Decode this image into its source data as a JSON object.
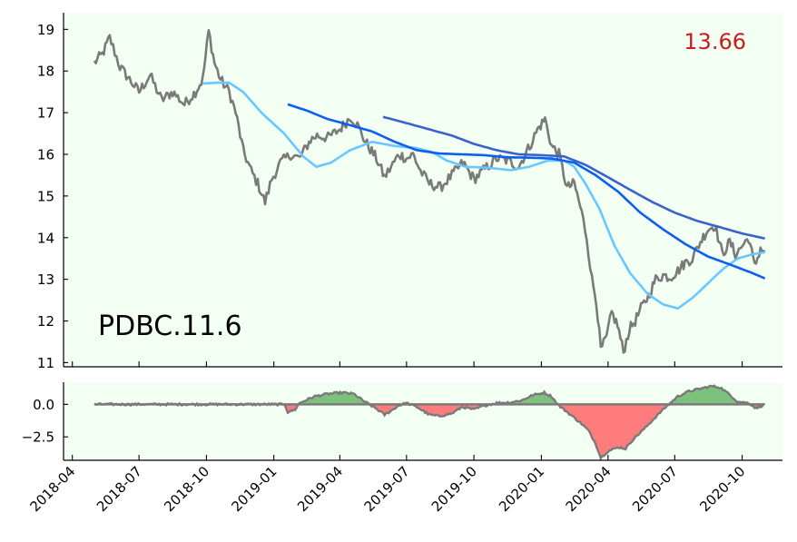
{
  "colors": {
    "background": "#f4fff4",
    "price": "#7a7a7a",
    "sma_short": "#66c8ff",
    "sma_mid": "#0a5ff0",
    "sma_long": "#3a62c8",
    "positive_fill": "#7cc27c",
    "negative_fill": "#ff7c7c",
    "price_label": "#c81e1e"
  },
  "annotations": {
    "last_price": "13.66",
    "ticker_label": "PDBC.11.6"
  },
  "chart_data": [
    {
      "type": "line",
      "x_ticks": [
        "2018-04",
        "2018-07",
        "2018-10",
        "2019-01",
        "2019-04",
        "2019-07",
        "2019-10",
        "2020-01",
        "2020-04",
        "2020-07",
        "2020-10"
      ],
      "y_ticks": [
        11,
        12,
        13,
        14,
        15,
        16,
        17,
        18,
        19
      ],
      "ylim": [
        10.9,
        19.4
      ],
      "xlim": [
        "2018-03-20",
        "2020-11-25"
      ],
      "grid": false,
      "price_keypoints": [
        [
          "2018-05-01",
          18.2
        ],
        [
          "2018-05-12",
          18.4
        ],
        [
          "2018-05-22",
          18.8
        ],
        [
          "2018-06-05",
          18.1
        ],
        [
          "2018-06-18",
          17.8
        ],
        [
          "2018-07-01",
          17.5
        ],
        [
          "2018-07-16",
          17.9
        ],
        [
          "2018-08-01",
          17.3
        ],
        [
          "2018-08-16",
          17.5
        ],
        [
          "2018-09-01",
          17.2
        ],
        [
          "2018-09-16",
          17.5
        ],
        [
          "2018-09-26",
          17.8
        ],
        [
          "2018-10-04",
          18.95
        ],
        [
          "2018-10-12",
          18.2
        ],
        [
          "2018-10-20",
          17.8
        ],
        [
          "2018-11-01",
          17.5
        ],
        [
          "2018-11-10",
          17.0
        ],
        [
          "2018-11-20",
          16.1
        ],
        [
          "2018-12-01",
          15.6
        ],
        [
          "2018-12-10",
          15.3
        ],
        [
          "2018-12-20",
          14.85
        ],
        [
          "2018-12-29",
          15.4
        ],
        [
          "2019-01-10",
          15.8
        ],
        [
          "2019-01-24",
          16.0
        ],
        [
          "2019-02-05",
          15.9
        ],
        [
          "2019-02-20",
          16.35
        ],
        [
          "2019-03-01",
          16.45
        ],
        [
          "2019-03-16",
          16.4
        ],
        [
          "2019-04-01",
          16.6
        ],
        [
          "2019-04-16",
          16.9
        ],
        [
          "2019-04-25",
          16.7
        ],
        [
          "2019-05-06",
          16.3
        ],
        [
          "2019-05-21",
          15.9
        ],
        [
          "2019-06-01",
          15.45
        ],
        [
          "2019-06-10",
          15.7
        ],
        [
          "2019-06-21",
          16.0
        ],
        [
          "2019-07-01",
          15.9
        ],
        [
          "2019-07-10",
          16.0
        ],
        [
          "2019-07-20",
          15.6
        ],
        [
          "2019-08-01",
          15.3
        ],
        [
          "2019-08-16",
          15.2
        ],
        [
          "2019-09-01",
          15.5
        ],
        [
          "2019-09-16",
          15.8
        ],
        [
          "2019-10-01",
          15.4
        ],
        [
          "2019-10-16",
          15.65
        ],
        [
          "2019-11-01",
          15.9
        ],
        [
          "2019-11-16",
          15.85
        ],
        [
          "2019-12-01",
          15.7
        ],
        [
          "2019-12-16",
          16.2
        ],
        [
          "2019-12-27",
          16.6
        ],
        [
          "2020-01-06",
          16.85
        ],
        [
          "2020-01-15",
          16.2
        ],
        [
          "2020-01-25",
          16.0
        ],
        [
          "2020-02-05",
          15.2
        ],
        [
          "2020-02-15",
          15.3
        ],
        [
          "2020-02-25",
          14.6
        ],
        [
          "2020-03-03",
          14.0
        ],
        [
          "2020-03-10",
          13.0
        ],
        [
          "2020-03-16",
          12.5
        ],
        [
          "2020-03-22",
          11.3
        ],
        [
          "2020-03-30",
          11.6
        ],
        [
          "2020-04-06",
          12.2
        ],
        [
          "2020-04-14",
          11.9
        ],
        [
          "2020-04-22",
          11.25
        ],
        [
          "2020-04-30",
          11.8
        ],
        [
          "2020-05-08",
          12.0
        ],
        [
          "2020-05-16",
          12.3
        ],
        [
          "2020-05-26",
          12.6
        ],
        [
          "2020-06-05",
          13.0
        ],
        [
          "2020-06-15",
          13.1
        ],
        [
          "2020-06-25",
          13.05
        ],
        [
          "2020-07-05",
          13.2
        ],
        [
          "2020-07-15",
          13.4
        ],
        [
          "2020-07-25",
          13.5
        ],
        [
          "2020-08-05",
          13.9
        ],
        [
          "2020-08-15",
          14.2
        ],
        [
          "2020-08-25",
          14.3
        ],
        [
          "2020-09-04",
          13.6
        ],
        [
          "2020-09-14",
          13.9
        ],
        [
          "2020-09-22",
          13.6
        ],
        [
          "2020-10-01",
          13.8
        ],
        [
          "2020-10-10",
          14.0
        ],
        [
          "2020-10-18",
          13.3
        ],
        [
          "2020-10-26",
          13.75
        ],
        [
          "2020-11-01",
          13.66
        ]
      ],
      "sma_short_keypoints": [
        [
          "2018-09-26",
          17.7
        ],
        [
          "2018-10-16",
          17.72
        ],
        [
          "2018-11-01",
          17.72
        ],
        [
          "2018-11-20",
          17.5
        ],
        [
          "2018-12-15",
          17.0
        ],
        [
          "2019-01-15",
          16.5
        ],
        [
          "2019-02-10",
          15.95
        ],
        [
          "2019-02-28",
          15.7
        ],
        [
          "2019-03-20",
          15.8
        ],
        [
          "2019-04-15",
          16.1
        ],
        [
          "2019-05-15",
          16.3
        ],
        [
          "2019-06-15",
          16.2
        ],
        [
          "2019-07-15",
          16.15
        ],
        [
          "2019-08-05",
          16.05
        ],
        [
          "2019-08-25",
          15.85
        ],
        [
          "2019-09-20",
          15.7
        ],
        [
          "2019-10-20",
          15.68
        ],
        [
          "2019-11-20",
          15.62
        ],
        [
          "2019-12-15",
          15.7
        ],
        [
          "2020-01-10",
          15.85
        ],
        [
          "2020-02-01",
          15.85
        ],
        [
          "2020-02-15",
          15.7
        ],
        [
          "2020-03-01",
          15.3
        ],
        [
          "2020-03-20",
          14.7
        ],
        [
          "2020-04-10",
          13.8
        ],
        [
          "2020-05-01",
          13.15
        ],
        [
          "2020-05-25",
          12.65
        ],
        [
          "2020-06-15",
          12.4
        ],
        [
          "2020-07-05",
          12.3
        ],
        [
          "2020-07-25",
          12.55
        ],
        [
          "2020-08-15",
          12.9
        ],
        [
          "2020-09-05",
          13.25
        ],
        [
          "2020-09-25",
          13.5
        ],
        [
          "2020-10-15",
          13.6
        ],
        [
          "2020-11-01",
          13.65
        ]
      ],
      "sma_mid_keypoints": [
        [
          "2019-01-20",
          17.2
        ],
        [
          "2019-02-15",
          17.05
        ],
        [
          "2019-03-15",
          16.85
        ],
        [
          "2019-04-15",
          16.7
        ],
        [
          "2019-05-15",
          16.55
        ],
        [
          "2019-06-15",
          16.3
        ],
        [
          "2019-07-15",
          16.1
        ],
        [
          "2019-08-15",
          16.02
        ],
        [
          "2019-09-15",
          16.0
        ],
        [
          "2019-10-15",
          15.98
        ],
        [
          "2019-11-15",
          15.93
        ],
        [
          "2019-12-15",
          15.92
        ],
        [
          "2020-01-15",
          15.9
        ],
        [
          "2020-02-15",
          15.8
        ],
        [
          "2020-03-15",
          15.5
        ],
        [
          "2020-04-15",
          15.1
        ],
        [
          "2020-05-15",
          14.6
        ],
        [
          "2020-06-15",
          14.2
        ],
        [
          "2020-07-15",
          13.85
        ],
        [
          "2020-08-15",
          13.55
        ],
        [
          "2020-09-15",
          13.35
        ],
        [
          "2020-10-15",
          13.15
        ],
        [
          "2020-11-01",
          13.02
        ]
      ],
      "sma_long_keypoints": [
        [
          "2019-05-30",
          16.9
        ],
        [
          "2019-07-01",
          16.75
        ],
        [
          "2019-08-01",
          16.6
        ],
        [
          "2019-09-01",
          16.45
        ],
        [
          "2019-10-01",
          16.25
        ],
        [
          "2019-11-01",
          16.1
        ],
        [
          "2019-12-01",
          16.0
        ],
        [
          "2020-01-01",
          15.98
        ],
        [
          "2020-02-01",
          15.95
        ],
        [
          "2020-03-01",
          15.75
        ],
        [
          "2020-04-01",
          15.45
        ],
        [
          "2020-05-01",
          15.15
        ],
        [
          "2020-06-01",
          14.85
        ],
        [
          "2020-07-01",
          14.6
        ],
        [
          "2020-08-01",
          14.4
        ],
        [
          "2020-09-01",
          14.25
        ],
        [
          "2020-10-01",
          14.1
        ],
        [
          "2020-11-01",
          13.98
        ]
      ]
    },
    {
      "type": "area",
      "y_ticks": [
        0.0,
        -2.5
      ],
      "y_tick_labels": [
        "0.0",
        "−2.5"
      ],
      "ylim": [
        -4.3,
        1.7
      ],
      "grid": false,
      "oscillator_keypoints": [
        [
          "2018-05-01",
          0
        ],
        [
          "2019-01-16",
          0
        ],
        [
          "2019-01-20",
          -0.6
        ],
        [
          "2019-01-30",
          -0.4
        ],
        [
          "2019-02-05",
          0.1
        ],
        [
          "2019-02-25",
          0.6
        ],
        [
          "2019-03-15",
          0.8
        ],
        [
          "2019-04-05",
          0.9
        ],
        [
          "2019-04-20",
          0.8
        ],
        [
          "2019-05-05",
          0.2
        ],
        [
          "2019-05-20",
          -0.3
        ],
        [
          "2019-06-01",
          -0.8
        ],
        [
          "2019-06-10",
          -0.5
        ],
        [
          "2019-06-20",
          -0.1
        ],
        [
          "2019-07-01",
          0.1
        ],
        [
          "2019-07-15",
          -0.2
        ],
        [
          "2019-08-01",
          -0.8
        ],
        [
          "2019-08-15",
          -0.9
        ],
        [
          "2019-09-01",
          -0.7
        ],
        [
          "2019-09-15",
          -0.2
        ],
        [
          "2019-10-01",
          -0.4
        ],
        [
          "2019-10-15",
          -0.1
        ],
        [
          "2019-11-01",
          0.1
        ],
        [
          "2019-11-20",
          0.15
        ],
        [
          "2019-12-05",
          0.3
        ],
        [
          "2019-12-20",
          0.7
        ],
        [
          "2020-01-05",
          0.9
        ],
        [
          "2020-01-15",
          0.6
        ],
        [
          "2020-01-25",
          -0.1
        ],
        [
          "2020-02-10",
          -0.8
        ],
        [
          "2020-02-25",
          -1.5
        ],
        [
          "2020-03-05",
          -2.0
        ],
        [
          "2020-03-15",
          -3.0
        ],
        [
          "2020-03-22",
          -4.1
        ],
        [
          "2020-04-01",
          -3.6
        ],
        [
          "2020-04-15",
          -3.3
        ],
        [
          "2020-04-25",
          -3.4
        ],
        [
          "2020-05-05",
          -2.7
        ],
        [
          "2020-05-20",
          -1.9
        ],
        [
          "2020-06-01",
          -1.2
        ],
        [
          "2020-06-15",
          -0.4
        ],
        [
          "2020-06-25",
          0.1
        ],
        [
          "2020-07-05",
          0.6
        ],
        [
          "2020-07-20",
          1.0
        ],
        [
          "2020-08-05",
          1.2
        ],
        [
          "2020-08-20",
          1.4
        ],
        [
          "2020-09-01",
          1.3
        ],
        [
          "2020-09-15",
          0.7
        ],
        [
          "2020-09-25",
          0.2
        ],
        [
          "2020-10-10",
          0.1
        ],
        [
          "2020-10-20",
          -0.3
        ],
        [
          "2020-10-28",
          -0.1
        ],
        [
          "2020-11-01",
          0.0
        ]
      ]
    }
  ]
}
